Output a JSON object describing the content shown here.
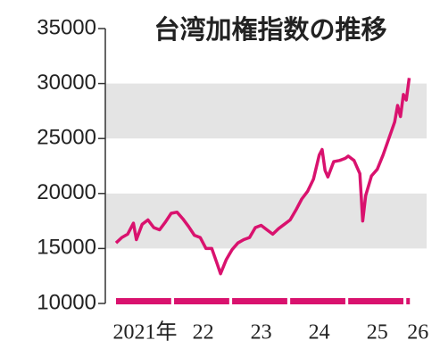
{
  "chart_data": {
    "type": "line",
    "title": "台湾加権指数の推移",
    "x": [
      2021.0,
      2021.1,
      2021.2,
      2021.3,
      2021.35,
      2021.45,
      2021.55,
      2021.65,
      2021.75,
      2021.85,
      2021.95,
      2022.05,
      2022.15,
      2022.25,
      2022.35,
      2022.45,
      2022.55,
      2022.65,
      2022.75,
      2022.8,
      2022.9,
      2023.0,
      2023.1,
      2023.2,
      2023.3,
      2023.4,
      2023.5,
      2023.6,
      2023.7,
      2023.8,
      2023.9,
      2024.0,
      2024.1,
      2024.2,
      2024.3,
      2024.4,
      2024.5,
      2024.55,
      2024.6,
      2024.65,
      2024.75,
      2024.85,
      2024.95,
      2025.0,
      2025.1,
      2025.2,
      2025.25,
      2025.3,
      2025.4,
      2025.5,
      2025.6,
      2025.7,
      2025.8,
      2025.85,
      2025.9,
      2025.95,
      2026.0,
      2026.05
    ],
    "series": [
      {
        "color": "#d9126e",
        "values": [
          15500,
          16000,
          16300,
          17300,
          15800,
          17200,
          17600,
          16900,
          16700,
          17400,
          18200,
          18300,
          17700,
          17000,
          16200,
          16000,
          15000,
          15000,
          13500,
          12700,
          14000,
          14900,
          15500,
          15800,
          16000,
          16900,
          17100,
          16700,
          16300,
          16800,
          17200,
          17600,
          18500,
          19500,
          20200,
          21300,
          23500,
          24000,
          22100,
          21500,
          22900,
          23000,
          23200,
          23400,
          23000,
          21800,
          17500,
          19800,
          21600,
          22200,
          23500,
          25000,
          26500,
          28000,
          27000,
          29000,
          28500,
          30500
        ]
      }
    ],
    "xlim": [
      2021.0,
      2026.35
    ],
    "xticks": [
      {
        "value": 2021.5,
        "label": "2021年"
      },
      {
        "value": 2022.5,
        "label": "22"
      },
      {
        "value": 2023.5,
        "label": "23"
      },
      {
        "value": 2024.5,
        "label": "24"
      },
      {
        "value": 2025.5,
        "label": "25"
      },
      {
        "value": 2026.2,
        "label": "26"
      }
    ],
    "ylim": [
      10000,
      35000
    ],
    "yticks": [
      10000,
      15000,
      20000,
      25000,
      30000,
      35000
    ],
    "bands": true
  }
}
